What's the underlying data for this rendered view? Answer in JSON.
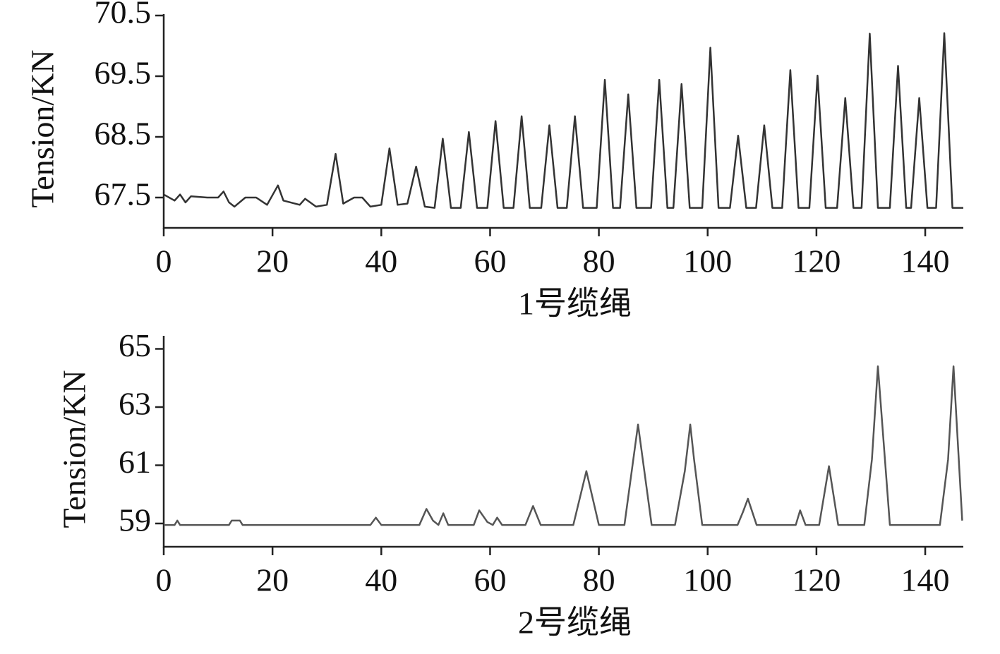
{
  "chart_data": [
    {
      "type": "line",
      "xlabel": "1号缆绳",
      "ylabel": "Tension/KN",
      "xlim": [
        0,
        147
      ],
      "xticks": [
        0,
        20,
        40,
        60,
        80,
        100,
        120,
        140
      ],
      "ylim": [
        67.0,
        70.5
      ],
      "yticks": [
        67.5,
        68.5,
        69.5,
        70.5
      ],
      "series": [
        {
          "color": "#333333",
          "x": [
            0,
            2,
            3,
            4,
            5,
            8,
            10,
            11,
            12,
            13,
            15,
            17,
            19,
            21,
            22,
            25,
            26,
            28,
            30,
            31.6,
            33,
            35,
            36.5,
            38,
            40,
            41.5,
            43,
            44.8,
            46.4,
            48,
            49.8,
            51.3,
            52.8,
            54.6,
            56.1,
            57.6,
            59.5,
            61,
            62.5,
            64.3,
            65.8,
            67.3,
            69.4,
            70.9,
            72.4,
            74.1,
            75.6,
            77.1,
            79.6,
            81.1,
            82.6,
            83.9,
            85.4,
            86.9,
            89.6,
            91.1,
            92.6,
            93.7,
            95.2,
            96.7,
            99,
            100.5,
            102,
            104.1,
            105.6,
            107.1,
            108.9,
            110.4,
            111.9,
            113.7,
            115.2,
            116.7,
            118.7,
            120.2,
            121.7,
            123.8,
            125.3,
            126.8,
            128.3,
            129.8,
            131.3,
            133.5,
            135,
            136.5,
            137.4,
            138.9,
            140.4,
            142,
            143.5,
            145,
            147
          ],
          "values": [
            67.55,
            67.45,
            67.55,
            67.42,
            67.52,
            67.5,
            67.5,
            67.6,
            67.42,
            67.35,
            67.5,
            67.5,
            67.38,
            67.7,
            67.45,
            67.38,
            67.48,
            67.35,
            67.38,
            68.22,
            67.4,
            67.5,
            67.5,
            67.35,
            67.38,
            68.31,
            67.38,
            67.4,
            68.01,
            67.35,
            67.33,
            68.47,
            67.33,
            67.33,
            68.58,
            67.33,
            67.33,
            68.76,
            67.33,
            67.33,
            68.84,
            67.33,
            67.33,
            68.69,
            67.33,
            67.33,
            68.84,
            67.33,
            67.33,
            69.44,
            67.33,
            67.33,
            69.2,
            67.33,
            67.33,
            69.44,
            67.33,
            67.33,
            69.37,
            67.33,
            67.33,
            69.97,
            67.33,
            67.33,
            68.52,
            67.33,
            67.33,
            68.69,
            67.33,
            67.33,
            69.6,
            67.33,
            67.33,
            69.51,
            67.33,
            67.33,
            69.14,
            67.33,
            67.33,
            70.2,
            67.33,
            67.33,
            69.67,
            67.33,
            67.33,
            69.14,
            67.33,
            67.33,
            70.21,
            67.33,
            67.33
          ]
        }
      ]
    },
    {
      "type": "line",
      "xlabel": "2号缆绳",
      "ylabel": "Tension/KN",
      "xlim": [
        0,
        147
      ],
      "xticks": [
        0,
        20,
        40,
        60,
        80,
        100,
        120,
        140
      ],
      "ylim": [
        58.2,
        65.4
      ],
      "yticks": [
        59,
        61,
        63,
        65
      ],
      "series": [
        {
          "color": "#555555",
          "x": [
            0,
            2,
            2.5,
            3,
            12,
            12.5,
            14,
            14.5,
            38,
            39,
            40,
            47,
            48.3,
            49.5,
            50.5,
            51.4,
            52.3,
            57,
            58,
            59.5,
            60.5,
            61.3,
            62.2,
            66.5,
            67.9,
            69.3,
            75.3,
            77.7,
            80,
            84.7,
            87.2,
            89.7,
            94,
            95.8,
            96.8,
            97.5,
            99,
            105.5,
            106.5,
            107.4,
            109,
            116.2,
            117,
            118,
            120.5,
            122.3,
            124,
            128.8,
            130.2,
            131.3,
            133.5,
            142.7,
            144.2,
            145.2,
            146.8
          ],
          "values": [
            58.95,
            58.95,
            59.1,
            58.95,
            58.95,
            59.1,
            59.1,
            58.95,
            58.95,
            59.2,
            58.95,
            58.95,
            59.5,
            59.1,
            58.95,
            59.35,
            58.95,
            58.95,
            59.45,
            59.05,
            58.95,
            59.2,
            58.95,
            58.95,
            59.6,
            58.95,
            58.95,
            60.8,
            58.95,
            58.95,
            62.4,
            58.95,
            58.95,
            60.8,
            62.4,
            61.2,
            58.95,
            58.95,
            59.4,
            59.85,
            58.95,
            58.95,
            59.45,
            58.95,
            58.95,
            60.97,
            58.95,
            58.95,
            61.2,
            64.4,
            58.95,
            58.95,
            61.2,
            64.4,
            59.1
          ]
        }
      ]
    }
  ]
}
